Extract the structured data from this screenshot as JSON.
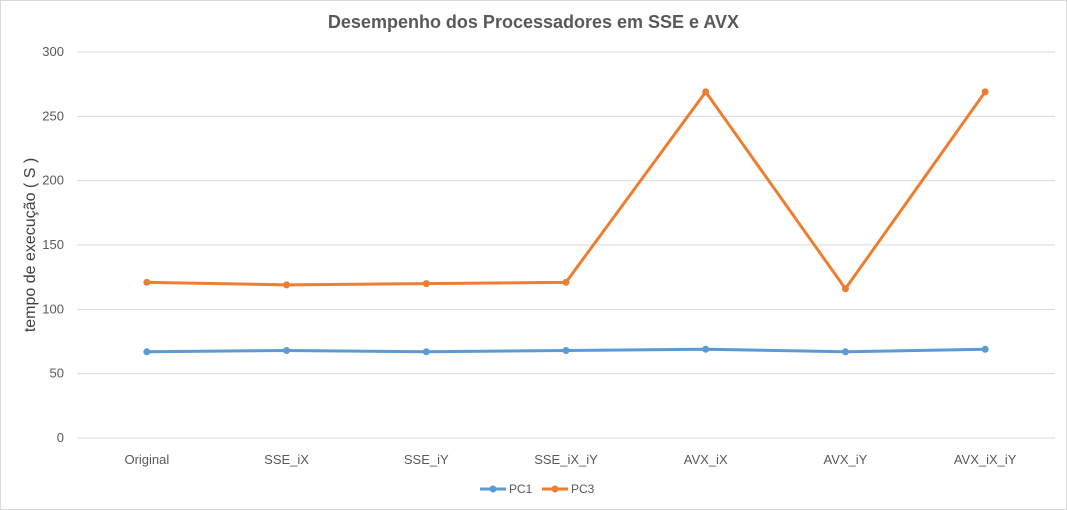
{
  "chart_data": {
    "type": "line",
    "title": "Desempenho dos Processadores  em SSE e AVX",
    "xlabel": "",
    "ylabel": "tempo de execução ( S )",
    "categories": [
      "Original",
      "SSE_iX",
      "SSE_iY",
      "SSE_iX_iY",
      "AVX_iX",
      "AVX_iY",
      "AVX_iX_iY"
    ],
    "ylim": [
      0,
      300
    ],
    "yticks": [
      0,
      50,
      100,
      150,
      200,
      250,
      300
    ],
    "grid": true,
    "legend_position": "bottom",
    "series": [
      {
        "name": "PC1",
        "color": "#5b9bd5",
        "values": [
          67,
          68,
          67,
          68,
          69,
          67,
          69
        ]
      },
      {
        "name": "PC3",
        "color": "#ed7d31",
        "values": [
          121,
          119,
          120,
          121,
          269,
          116,
          269
        ]
      }
    ]
  }
}
